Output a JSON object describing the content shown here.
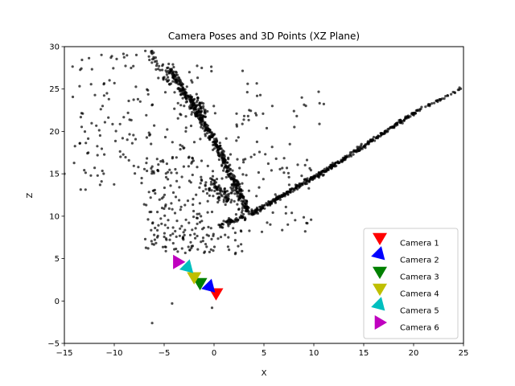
{
  "chart_data": {
    "type": "scatter",
    "title": "Camera Poses and 3D Points (XZ Plane)",
    "xlabel": "X",
    "ylabel": "Z",
    "xlim": [
      -15,
      25
    ],
    "ylim": [
      -5,
      30
    ],
    "xticks": [
      "−15",
      "−10",
      "−5",
      "0",
      "5",
      "10",
      "15",
      "20",
      "25"
    ],
    "yticks": [
      "−5",
      "0",
      "5",
      "10",
      "15",
      "20",
      "25",
      "30"
    ],
    "legend_position": "lower-right",
    "points_color": "#000000",
    "point_clusters": [
      {
        "from": [
          -4.5,
          27.5
        ],
        "to": [
          0.2,
          18.5
        ],
        "count": 260,
        "spread": 0.55
      },
      {
        "from": [
          0.2,
          18.5
        ],
        "to": [
          3.6,
          10.2
        ],
        "count": 240,
        "spread": 0.6
      },
      {
        "from": [
          3.6,
          10.2
        ],
        "to": [
          12.0,
          16.0
        ],
        "count": 230,
        "spread": 0.35
      },
      {
        "from": [
          12.0,
          16.0
        ],
        "to": [
          20.5,
          22.5
        ],
        "count": 180,
        "spread": 0.3
      },
      {
        "from": [
          20.5,
          22.5
        ],
        "to": [
          25.0,
          25.2
        ],
        "count": 35,
        "spread": 0.25
      },
      {
        "from": [
          -6.5,
          29.5
        ],
        "to": [
          -4.5,
          25.5
        ],
        "count": 40,
        "spread": 0.7
      },
      {
        "from": [
          -0.5,
          14.0
        ],
        "to": [
          1.5,
          12.0
        ],
        "count": 90,
        "spread": 1.2
      },
      {
        "from": [
          0.5,
          9.0
        ],
        "to": [
          3.0,
          10.0
        ],
        "count": 50,
        "spread": 0.6
      },
      {
        "from": [
          -2.0,
          24.0
        ],
        "to": [
          -1.0,
          22.0
        ],
        "count": 50,
        "spread": 0.8
      }
    ],
    "scattered_regions": [
      {
        "x": [
          -14.5,
          -6
        ],
        "y": [
          13,
          29.5
        ],
        "count": 110
      },
      {
        "x": [
          -7,
          0
        ],
        "y": [
          6,
          17
        ],
        "count": 150
      },
      {
        "x": [
          -6,
          3
        ],
        "y": [
          5.5,
          9
        ],
        "count": 60
      },
      {
        "x": [
          2,
          10
        ],
        "y": [
          8,
          17
        ],
        "count": 60
      },
      {
        "x": [
          -5,
          5
        ],
        "y": [
          17,
          28
        ],
        "count": 70
      },
      {
        "x": [
          5,
          12
        ],
        "y": [
          14,
          26
        ],
        "count": 18
      }
    ],
    "isolated_points": [
      [
        -15,
        15
      ],
      [
        -6.2,
        -2.6
      ],
      [
        -4.2,
        -0.3
      ],
      [
        -0.2,
        -0.8
      ],
      [
        7.6,
        18.5
      ],
      [
        8.8,
        24.0
      ],
      [
        3.5,
        13.0
      ],
      [
        -6.0,
        7.8
      ]
    ],
    "series": [
      {
        "name": "Camera 1",
        "x": 0.2,
        "y": 0.9,
        "color": "#ff0000",
        "direction": "down"
      },
      {
        "name": "Camera 2",
        "x": -0.4,
        "y": 1.6,
        "color": "#0000ff",
        "direction": "down-right"
      },
      {
        "name": "Camera 3",
        "x": -1.4,
        "y": 2.1,
        "color": "#008000",
        "direction": "down"
      },
      {
        "name": "Camera 4",
        "x": -2.0,
        "y": 2.8,
        "color": "#bfbf00",
        "direction": "down"
      },
      {
        "name": "Camera 5",
        "x": -2.6,
        "y": 3.9,
        "color": "#00bfbf",
        "direction": "down-right"
      },
      {
        "name": "Camera 6",
        "x": -3.6,
        "y": 4.6,
        "color": "#bf00bf",
        "direction": "right"
      }
    ]
  }
}
